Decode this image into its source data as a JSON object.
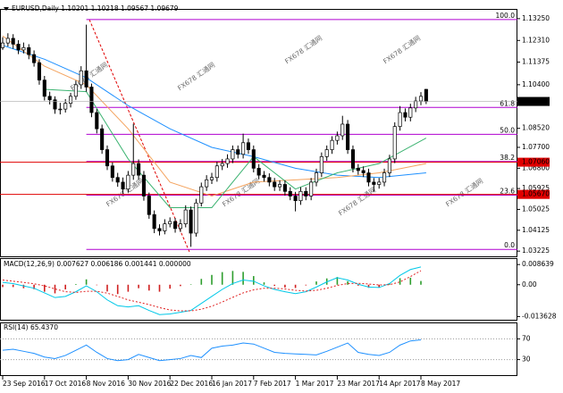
{
  "chart_data": [
    {
      "type": "candlestick",
      "title": "EURUSD,Daily  1.10201 1.10218 1.09567 1.09679",
      "categories": [
        "23 Sep 2016",
        null,
        null,
        null,
        null,
        null,
        null,
        null,
        "17 Oct 2016",
        null,
        null,
        null,
        null,
        null,
        null,
        null,
        "8 Nov 2016",
        null,
        null,
        null,
        null,
        null,
        null,
        null,
        "30 Nov 2016",
        null,
        null,
        null,
        null,
        null,
        null,
        null,
        "22 Dec 2016",
        null,
        null,
        null,
        null,
        null,
        null,
        null,
        "16 Jan 2017",
        null,
        null,
        null,
        null,
        null,
        null,
        null,
        "7 Feb 2017",
        null,
        null,
        null,
        null,
        null,
        null,
        null,
        "1 Mar 2017",
        null,
        null,
        null,
        null,
        null,
        null,
        null,
        "23 Mar 2017",
        null,
        null,
        null,
        null,
        null,
        null,
        null,
        "14 Apr 2017",
        null,
        null,
        null,
        null,
        null,
        null,
        null,
        "8 May 2017",
        null
      ],
      "ohlc": [
        [
          1.12,
          1.1245,
          1.119,
          1.122
        ],
        [
          1.122,
          1.1262,
          1.1205,
          1.124
        ],
        [
          1.124,
          1.1258,
          1.1195,
          1.1215
        ],
        [
          1.1215,
          1.1232,
          1.1172,
          1.119
        ],
        [
          1.119,
          1.1222,
          1.1175,
          1.12
        ],
        [
          1.12,
          1.1215,
          1.115,
          1.117
        ],
        [
          1.117,
          1.1188,
          1.1118,
          1.1135
        ],
        [
          1.1135,
          1.115,
          1.104,
          1.106
        ],
        [
          1.106,
          1.1078,
          1.0972,
          1.099
        ],
        [
          1.099,
          1.101,
          1.0955,
          1.0975
        ],
        [
          1.0975,
          1.099,
          1.0915,
          1.0935
        ],
        [
          1.0935,
          1.0962,
          1.0912,
          1.0935
        ],
        [
          1.0935,
          1.0978,
          1.092,
          1.096
        ],
        [
          1.096,
          1.1005,
          1.0942,
          1.099
        ],
        [
          1.099,
          1.1058,
          1.0975,
          1.104
        ],
        [
          1.104,
          1.112,
          1.1022,
          1.11
        ],
        [
          1.11,
          1.1299,
          1.101,
          1.103
        ],
        [
          1.103,
          1.1045,
          1.09,
          1.092
        ],
        [
          1.092,
          1.0935,
          1.083,
          1.085
        ],
        [
          1.085,
          1.0868,
          1.0742,
          1.076
        ],
        [
          1.076,
          1.0778,
          1.0672,
          1.069
        ],
        [
          1.069,
          1.0705,
          1.0622,
          1.064
        ],
        [
          1.064,
          1.066,
          1.06,
          1.062
        ],
        [
          1.062,
          1.064,
          1.057,
          1.059
        ],
        [
          1.059,
          1.0668,
          1.0575,
          1.065
        ],
        [
          1.065,
          1.0872,
          1.063,
          1.07
        ],
        [
          1.07,
          1.0718,
          1.063,
          1.065
        ],
        [
          1.065,
          1.0668,
          1.054,
          1.056
        ],
        [
          1.056,
          1.0575,
          1.0462,
          1.048
        ],
        [
          1.048,
          1.0498,
          1.04,
          1.042
        ],
        [
          1.042,
          1.0438,
          1.039,
          1.041
        ],
        [
          1.041,
          1.046,
          1.0395,
          1.044
        ],
        [
          1.044,
          1.0468,
          1.0425,
          1.045
        ],
        [
          1.045,
          1.0465,
          1.0402,
          1.042
        ],
        [
          1.042,
          1.046,
          1.0405,
          1.044
        ],
        [
          1.044,
          1.052,
          1.0425,
          1.05
        ],
        [
          1.05,
          1.0515,
          1.0341,
          1.04
        ],
        [
          1.04,
          1.0548,
          1.0385,
          1.053
        ],
        [
          1.053,
          1.0618,
          1.0515,
          1.06
        ],
        [
          1.06,
          1.065,
          1.0582,
          1.063
        ],
        [
          1.063,
          1.066,
          1.0612,
          1.064
        ],
        [
          1.064,
          1.0708,
          1.0622,
          1.069
        ],
        [
          1.069,
          1.072,
          1.0672,
          1.07
        ],
        [
          1.07,
          1.074,
          1.0682,
          1.072
        ],
        [
          1.072,
          1.0778,
          1.0702,
          1.076
        ],
        [
          1.076,
          1.0778,
          1.0722,
          1.074
        ],
        [
          1.074,
          1.0829,
          1.0722,
          1.079
        ],
        [
          1.079,
          1.0808,
          1.0742,
          1.076
        ],
        [
          1.076,
          1.0778,
          1.0662,
          1.068
        ],
        [
          1.068,
          1.0698,
          1.0632,
          1.065
        ],
        [
          1.065,
          1.0668,
          1.0622,
          1.064
        ],
        [
          1.064,
          1.0658,
          1.0602,
          1.062
        ],
        [
          1.062,
          1.0638,
          1.0582,
          1.06
        ],
        [
          1.06,
          1.0628,
          1.0582,
          1.061
        ],
        [
          1.061,
          1.0628,
          1.0562,
          1.058
        ],
        [
          1.058,
          1.0598,
          1.0542,
          1.056
        ],
        [
          1.056,
          1.0578,
          1.0494,
          1.054
        ],
        [
          1.054,
          1.0598,
          1.0522,
          1.058
        ],
        [
          1.058,
          1.0598,
          1.0542,
          1.056
        ],
        [
          1.056,
          1.0638,
          1.0542,
          1.062
        ],
        [
          1.062,
          1.0678,
          1.0602,
          1.066
        ],
        [
          1.066,
          1.0748,
          1.0642,
          1.073
        ],
        [
          1.073,
          1.0778,
          1.0712,
          1.076
        ],
        [
          1.076,
          1.0818,
          1.0742,
          1.08
        ],
        [
          1.08,
          1.0838,
          1.0782,
          1.082
        ],
        [
          1.082,
          1.0906,
          1.0802,
          1.087
        ],
        [
          1.087,
          1.0888,
          1.0742,
          1.076
        ],
        [
          1.076,
          1.0778,
          1.0662,
          1.068
        ],
        [
          1.068,
          1.0698,
          1.0652,
          1.067
        ],
        [
          1.067,
          1.0688,
          1.0642,
          1.066
        ],
        [
          1.066,
          1.0678,
          1.0602,
          1.062
        ],
        [
          1.062,
          1.0638,
          1.0578,
          1.061
        ],
        [
          1.061,
          1.0638,
          1.0592,
          1.062
        ],
        [
          1.062,
          1.0678,
          1.0602,
          1.066
        ],
        [
          1.066,
          1.0738,
          1.0642,
          1.072
        ],
        [
          1.072,
          1.0878,
          1.0702,
          1.086
        ],
        [
          1.086,
          1.0948,
          1.0842,
          1.092
        ],
        [
          1.092,
          1.0938,
          1.0882,
          1.09
        ],
        [
          1.09,
          1.0958,
          1.0882,
          1.094
        ],
        [
          1.094,
          1.0988,
          1.0922,
          1.097
        ],
        [
          1.097,
          1.1008,
          1.0952,
          1.099
        ],
        [
          1.10201,
          1.10218,
          1.09567,
          1.09679
        ]
      ],
      "up_color": "#ffffff",
      "down_color": "#000000",
      "lines": [
        {
          "color": "#1e90ff",
          "x": [
            0,
            8,
            16,
            24,
            32,
            40,
            48,
            56,
            64,
            72,
            81
          ],
          "values": [
            1.121,
            1.115,
            1.107,
            1.095,
            1.085,
            1.077,
            1.073,
            1.068,
            1.065,
            1.064,
            1.066
          ]
        },
        {
          "color": "#f4a460",
          "x": [
            0,
            8,
            16,
            24,
            32,
            40,
            48,
            56,
            64,
            72,
            81
          ],
          "values": [
            1.125,
            1.112,
            1.104,
            1.085,
            1.062,
            1.056,
            1.062,
            1.063,
            1.064,
            1.066,
            1.07
          ]
        },
        {
          "color": "#3cb371",
          "x": [
            8,
            16,
            24,
            32,
            40,
            48,
            56,
            64,
            72,
            81
          ],
          "values": [
            1.102,
            1.101,
            1.072,
            1.051,
            1.051,
            1.073,
            1.059,
            1.066,
            1.07,
            1.081
          ]
        }
      ],
      "ylim": [
        1.03,
        1.1363
      ],
      "yticks": [
        {
          "value": 1.1325,
          "label": "1.13250"
        },
        {
          "value": 1.1231,
          "label": "1.12310"
        },
        1.11375,
        {
          "value": 1.104,
          "label": "1.10400"
        },
        {
          "value": 1.0852,
          "label": "1.08520"
        },
        {
          "value": 1.077,
          "label": "1.07700"
        },
        {
          "value": 1.068,
          "label": "1.06800"
        },
        1.05925,
        1.05025,
        1.04125,
        1.03225
      ],
      "fib_levels": [
        {
          "value": 1.1321,
          "label": "100.0"
        },
        {
          "value": 1.0942,
          "label": "61.8"
        },
        {
          "value": 1.0826,
          "label": "50.0"
        },
        {
          "value": 1.0709,
          "label": "38.2"
        },
        {
          "value": 1.0564,
          "label": "23.6"
        },
        {
          "value": 1.033,
          "label": "0.0"
        }
      ],
      "fib_color": "#b000d0",
      "hlines": [
        {
          "value": 1.0706,
          "label": "1.07060",
          "color": "#e00000"
        },
        {
          "value": 1.0567,
          "label": "1.05670",
          "color": "#e00000"
        }
      ],
      "last_price": 1.09679,
      "watermark": "FX678 汇通网"
    },
    {
      "type": "macd",
      "title": "MACD(12,26,9) 0.007627 0.006186 0.001441 0.000000",
      "x": [
        0,
        2,
        4,
        6,
        8,
        10,
        12,
        14,
        16,
        18,
        20,
        22,
        24,
        26,
        28,
        30,
        32,
        34,
        36,
        38,
        40,
        42,
        44,
        46,
        48,
        50,
        52,
        54,
        56,
        58,
        60,
        62,
        64,
        66,
        68,
        70,
        72,
        74,
        76,
        78,
        80
      ],
      "histogram": {
        "up_color": "#2e9e2e",
        "down_color": "#d02020",
        "values": [
          -0.001,
          -0.001,
          -0.0015,
          -0.0019,
          -0.003,
          -0.0037,
          -0.002,
          0.0003,
          0.0023,
          -0.0002,
          -0.0029,
          -0.004,
          -0.003,
          -0.0015,
          -0.0025,
          -0.003,
          -0.0017,
          -0.0006,
          0.0002,
          0.0025,
          0.0042,
          0.0054,
          0.0059,
          0.0055,
          0.0037,
          0.001,
          -0.0005,
          -0.0012,
          -0.0014,
          -0.0003,
          0.0014,
          0.0027,
          0.0033,
          0.0015,
          -0.0004,
          -0.0013,
          -0.0011,
          0.0005,
          0.0028,
          0.003,
          0.0016
        ]
      },
      "series": [
        {
          "color": "#00c8e8",
          "dashed": false,
          "values": [
            0.001,
            0.0005,
            -0.0005,
            -0.0015,
            -0.0035,
            -0.0055,
            -0.005,
            -0.003,
            -0.0005,
            -0.003,
            -0.0065,
            -0.009,
            -0.0095,
            -0.009,
            -0.011,
            -0.0128,
            -0.0125,
            -0.0118,
            -0.011,
            -0.008,
            -0.005,
            -0.002,
            0.0005,
            0.002,
            0.0015,
            -0.0005,
            -0.002,
            -0.003,
            -0.0038,
            -0.003,
            -0.001,
            0.0012,
            0.003,
            0.002,
            0.0002,
            -0.001,
            -0.0012,
            0.0005,
            0.004,
            0.0065,
            0.0076
          ]
        },
        {
          "color": "#e02020",
          "dashed": true,
          "values": [
            0.002,
            0.0015,
            0.001,
            0.0004,
            -0.0005,
            -0.0018,
            -0.003,
            -0.0033,
            -0.0028,
            -0.0028,
            -0.0036,
            -0.005,
            -0.0065,
            -0.0075,
            -0.0085,
            -0.0098,
            -0.0108,
            -0.0112,
            -0.0112,
            -0.0105,
            -0.0092,
            -0.0074,
            -0.0054,
            -0.0035,
            -0.0022,
            -0.0015,
            -0.0015,
            -0.0018,
            -0.0024,
            -0.0027,
            -0.0024,
            -0.0015,
            -0.0003,
            0.0005,
            0.0006,
            0.0003,
            -0.0001,
            0,
            0.0012,
            0.0035,
            0.006
          ]
        }
      ],
      "ylim": [
        -0.015,
        0.011
      ],
      "yticks": [
        0.008639,
        {
          "value": 0,
          "label": "0.00"
        },
        -0.013628
      ]
    },
    {
      "type": "line",
      "title": "RSI(14) 65.4370",
      "x": [
        0,
        2,
        4,
        6,
        8,
        10,
        12,
        14,
        16,
        18,
        20,
        22,
        24,
        26,
        28,
        30,
        32,
        34,
        36,
        38,
        40,
        42,
        44,
        46,
        48,
        50,
        52,
        54,
        56,
        58,
        60,
        62,
        64,
        66,
        68,
        70,
        72,
        74,
        76,
        78,
        80
      ],
      "values": [
        48,
        50,
        46,
        42,
        35,
        32,
        38,
        48,
        58,
        44,
        32,
        28,
        30,
        40,
        34,
        28,
        30,
        32,
        38,
        34,
        52,
        56,
        58,
        62,
        60,
        52,
        44,
        42,
        41,
        40,
        39,
        46,
        54,
        62,
        44,
        40,
        38,
        44,
        58,
        66,
        68
      ],
      "color": "#1e90ff",
      "ylim": [
        0,
        100
      ],
      "yticks": [
        70,
        30
      ],
      "grid": true
    }
  ]
}
